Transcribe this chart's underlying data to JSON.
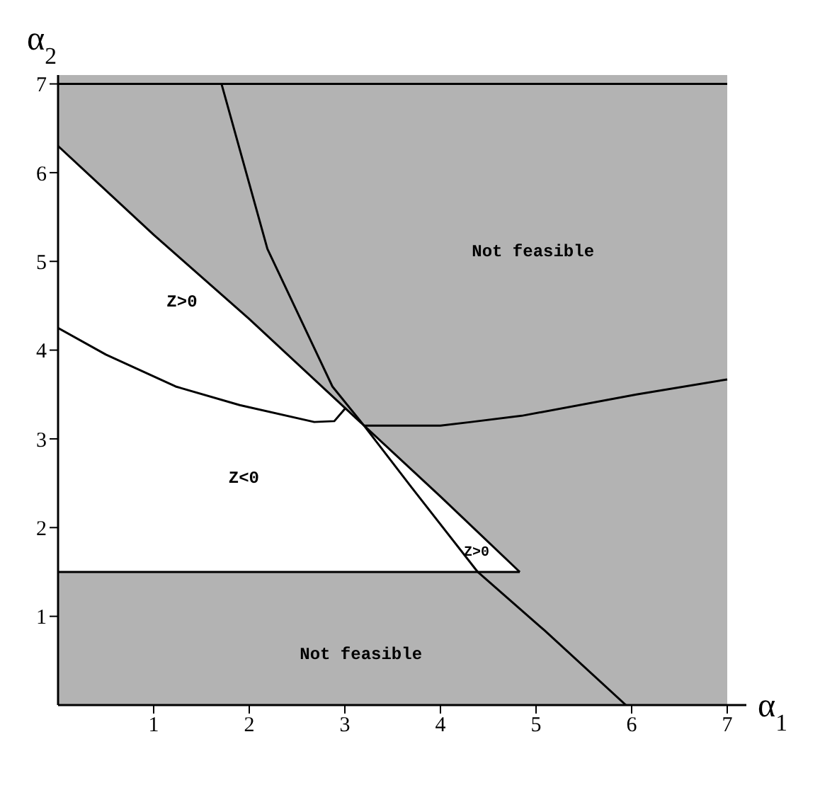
{
  "chart_data": {
    "type": "line",
    "xlabel": "α$_{1}$",
    "ylabel": "α$_{2}$",
    "xlim": [
      0,
      7.2
    ],
    "ylim": [
      0,
      7.1
    ],
    "xticks": [
      1,
      2,
      3,
      4,
      5,
      6,
      7
    ],
    "yticks": [
      1,
      2,
      3,
      4,
      5,
      6,
      7
    ],
    "grid": false,
    "legend": false,
    "marker": "none",
    "line_style": "solid",
    "bands": [
      {
        "axis": "x",
        "from": 0,
        "to": 7,
        "color": "#b3b3b3"
      }
    ],
    "series": [
      {
        "type": "area",
        "color": "#ffffff",
        "x": [
          0,
          1,
          2,
          3,
          4,
          4.83
        ],
        "values": [
          6.3,
          5.3,
          4.35,
          3.35,
          2.35,
          1.5
        ]
      },
      {
        "color": "#000000",
        "x": [
          1.71,
          2.19,
          2.87,
          3.2,
          3.7,
          4.39,
          5.09,
          5.94
        ],
        "values": [
          7,
          5.14,
          3.59,
          3.15,
          2.45,
          1.5,
          0.84,
          0
        ]
      },
      {
        "color": "#000000",
        "x": [
          0,
          0.5,
          1.23,
          1.9,
          2.68,
          2.89,
          3.01
        ],
        "values": [
          4.25,
          3.95,
          3.59,
          3.38,
          3.19,
          3.2,
          3.35
        ]
      },
      {
        "color": "#000000",
        "x": [
          3.2,
          4,
          4.32,
          4.85,
          6.05,
          7
        ],
        "values": [
          3.15,
          3.15,
          3.19,
          3.26,
          3.5,
          3.67
        ]
      },
      {
        "color": "#000000",
        "x": [
          0,
          4.83
        ],
        "values": [
          1.5,
          1.5
        ]
      },
      {
        "color": "#000000",
        "x": [
          0,
          7
        ],
        "values": [
          7,
          7
        ]
      }
    ],
    "annotations": [
      "Not feasible",
      "Z>0",
      "Z<0",
      "Z>0",
      "Not feasible"
    ]
  }
}
